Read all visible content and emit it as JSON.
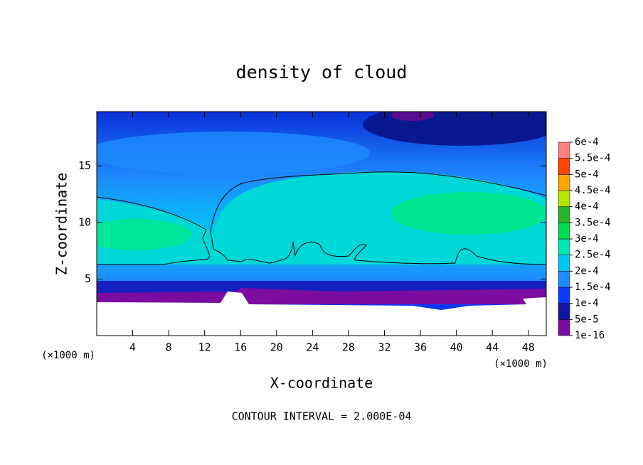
{
  "chart_data": {
    "type": "contour",
    "title": "density of cloud",
    "x_label": "X-coordinate",
    "y_label": "Z-coordinate",
    "x_unit_label": "(×1000 m)",
    "y_unit_label": "(×1000 m)",
    "note": "CONTOUR INTERVAL = 2.000E-04",
    "xlim": [
      0,
      50
    ],
    "xticks": [
      4,
      8,
      12,
      16,
      20,
      24,
      28,
      32,
      36,
      40,
      44,
      48
    ],
    "ylim": [
      0,
      19.8
    ],
    "yticks": [
      5,
      10,
      15
    ],
    "colorbar": {
      "levels": [
        {
          "value": 1e-16,
          "label": "1e-16"
        },
        {
          "value": 5e-05,
          "label": "5e-5"
        },
        {
          "value": 0.0001,
          "label": "1e-4"
        },
        {
          "value": 0.00015,
          "label": "1.5e-4"
        },
        {
          "value": 0.0002,
          "label": "2e-4"
        },
        {
          "value": 0.00025,
          "label": "2.5e-4"
        },
        {
          "value": 0.0003,
          "label": "3e-4"
        },
        {
          "value": 0.00035,
          "label": "3.5e-4"
        },
        {
          "value": 0.0004,
          "label": "4e-4"
        },
        {
          "value": 0.00045,
          "label": "4.5e-4"
        },
        {
          "value": 0.0005,
          "label": "5e-4"
        },
        {
          "value": 0.00055,
          "label": "5.5e-4"
        },
        {
          "value": 0.0006,
          "label": "6e-4"
        }
      ],
      "colors": [
        "#7a0ca0",
        "#1414a8",
        "#0a3cff",
        "#1e8cff",
        "#00c8f0",
        "#00e6b4",
        "#00dc50",
        "#28b428",
        "#b4e600",
        "#ffa500",
        "#ff4500",
        "#ff8080"
      ]
    }
  }
}
